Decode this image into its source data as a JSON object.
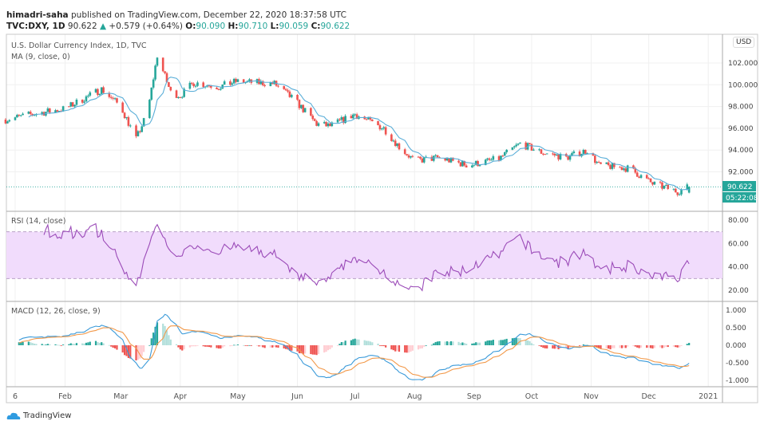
{
  "header": {
    "author": "himadri-saha",
    "published_text": "published on TradingView.com, December 22, 2020 18:37:58 UTC",
    "symbol": "TVC:DXY, 1D",
    "last": "90.622",
    "change": "+0.579 (+0.64%)",
    "o_label": "O:",
    "o": "90.090",
    "h_label": "H:",
    "h": "90.710",
    "l_label": "L:",
    "l": "90.059",
    "c_label": "C:",
    "c": "90.622"
  },
  "panes": {
    "main_title": "U.S. Dollar Currency Index, 1D, TVC",
    "ma_label": "MA (9, close, 0)",
    "rsi_label": "RSI (14, close)",
    "macd_label": "MACD (12, 26, close, 9)",
    "currency_button": "USD",
    "last_price_tag": "90.622",
    "countdown_tag": "05:22:08"
  },
  "footer": {
    "logo_text": "TradingView"
  },
  "colors": {
    "up": "#26a69a",
    "down": "#ef5350",
    "ma": "#5aaed8",
    "rsi": "#9b4bb8",
    "rsi_band": "#f1dcfc",
    "macd": "#3a9ad9",
    "signal": "#f2994a"
  },
  "chart_data": [
    {
      "type": "candlestick",
      "title": "U.S. Dollar Currency Index, 1D, TVC",
      "ylim": [
        89,
        103
      ],
      "yticks": [
        "102.000",
        "100.000",
        "98.000",
        "96.000",
        "94.000",
        "92.000"
      ],
      "xticks": [
        "6",
        "Feb",
        "Mar",
        "Apr",
        "May",
        "Jun",
        "Jul",
        "Aug",
        "Sep",
        "Oct",
        "Nov",
        "Dec",
        "2021"
      ],
      "close_approx": [
        {
          "date": "2020-01-01",
          "close": 96.8
        },
        {
          "date": "2020-01-15",
          "close": 97.3
        },
        {
          "date": "2020-02-01",
          "close": 97.8
        },
        {
          "date": "2020-02-20",
          "close": 99.6
        },
        {
          "date": "2020-03-01",
          "close": 98.0
        },
        {
          "date": "2020-03-09",
          "close": 95.0
        },
        {
          "date": "2020-03-15",
          "close": 97.5
        },
        {
          "date": "2020-03-20",
          "close": 102.7
        },
        {
          "date": "2020-03-27",
          "close": 99.3
        },
        {
          "date": "2020-04-01",
          "close": 99.0
        },
        {
          "date": "2020-04-08",
          "close": 100.2
        },
        {
          "date": "2020-04-21",
          "close": 99.8
        },
        {
          "date": "2020-04-30",
          "close": 100.3
        },
        {
          "date": "2020-05-20",
          "close": 100.1
        },
        {
          "date": "2020-05-31",
          "close": 98.5
        },
        {
          "date": "2020-06-11",
          "close": 96.4
        },
        {
          "date": "2020-06-18",
          "close": 96.2
        },
        {
          "date": "2020-07-01",
          "close": 97.3
        },
        {
          "date": "2020-07-04",
          "close": 97.0
        },
        {
          "date": "2020-07-16",
          "close": 96.0
        },
        {
          "date": "2020-07-24",
          "close": 94.3
        },
        {
          "date": "2020-08-01",
          "close": 93.0
        },
        {
          "date": "2020-08-13",
          "close": 93.3
        },
        {
          "date": "2020-08-29",
          "close": 92.6
        },
        {
          "date": "2020-09-14",
          "close": 93.2
        },
        {
          "date": "2020-09-25",
          "close": 94.6
        },
        {
          "date": "2020-10-06",
          "close": 93.8
        },
        {
          "date": "2020-10-19",
          "close": 93.3
        },
        {
          "date": "2020-10-30",
          "close": 94.0
        },
        {
          "date": "2020-11-05",
          "close": 92.6
        },
        {
          "date": "2020-11-21",
          "close": 92.3
        },
        {
          "date": "2020-12-03",
          "close": 90.9
        },
        {
          "date": "2020-12-16",
          "close": 90.2
        },
        {
          "date": "2020-12-22",
          "close": 90.622
        }
      ]
    },
    {
      "type": "line",
      "title": "RSI (14, close)",
      "ylim": [
        15,
        85
      ],
      "yticks": [
        "80.00",
        "60.00",
        "40.00",
        "20.00"
      ],
      "band": [
        30,
        70
      ]
    },
    {
      "type": "line+bar",
      "title": "MACD (12, 26, close, 9)",
      "ylim": [
        -1.2,
        1.2
      ],
      "yticks": [
        "1.000",
        "0.500",
        "0.000",
        "-0.500",
        "-1.000"
      ]
    }
  ]
}
